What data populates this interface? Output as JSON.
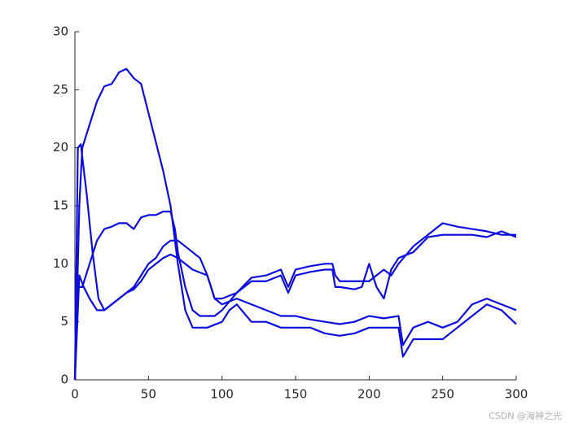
{
  "chart_data": {
    "type": "line",
    "xlim": [
      0,
      300
    ],
    "xticks": [
      0,
      50,
      100,
      150,
      200,
      250,
      300
    ],
    "ylim": [
      0,
      30
    ],
    "yticks": [
      0,
      5,
      10,
      15,
      20,
      25,
      30
    ],
    "grid": false,
    "series": [
      {
        "color": "#0d0de0",
        "x": [
          0,
          3,
          5,
          10,
          15,
          20,
          25,
          30,
          35,
          40,
          45,
          50,
          55,
          60,
          65,
          70,
          75,
          80,
          90,
          100,
          105,
          110,
          120,
          130,
          140,
          150,
          160,
          170,
          180,
          190,
          200,
          210,
          220,
          223,
          230,
          240,
          250,
          260,
          270,
          280,
          290,
          300
        ],
        "values": [
          0,
          15,
          20,
          22,
          24,
          25.3,
          25.5,
          26.5,
          26.8,
          26,
          25.5,
          23,
          20.5,
          18,
          15,
          10,
          6,
          4.5,
          4.5,
          5,
          6,
          6.5,
          5,
          5,
          4.5,
          4.5,
          4.5,
          4,
          3.8,
          4,
          4.5,
          4.5,
          4.5,
          2,
          3.5,
          3.5,
          3.5,
          4.5,
          5.5,
          6.5,
          6,
          4.8
        ]
      },
      {
        "color": "#0d0de0",
        "x": [
          0,
          2,
          4,
          8,
          12,
          16,
          20,
          25,
          30,
          35,
          40,
          45,
          50,
          55,
          60,
          65,
          70,
          75,
          80,
          90,
          95,
          100,
          110,
          120,
          130,
          140,
          150,
          160,
          170,
          180,
          190,
          200,
          210,
          220,
          223,
          230,
          240,
          250,
          260,
          270,
          280,
          290,
          300
        ],
        "values": [
          0,
          20,
          20.3,
          16,
          11,
          7,
          6,
          6.5,
          7,
          7.5,
          7.8,
          8.5,
          9.5,
          10,
          10.5,
          10.8,
          10.5,
          10,
          9.5,
          9,
          7,
          6.5,
          7,
          6.5,
          6,
          5.5,
          5.5,
          5.2,
          5,
          4.8,
          5,
          5.5,
          5.3,
          5.5,
          3,
          4.5,
          5,
          4.5,
          5,
          6.5,
          7,
          6.5,
          6
        ]
      },
      {
        "color": "#0d0de0",
        "x": [
          0,
          2,
          5,
          10,
          15,
          20,
          25,
          30,
          35,
          40,
          45,
          50,
          55,
          60,
          65,
          68,
          70,
          75,
          80,
          85,
          90,
          95,
          100,
          110,
          120,
          130,
          140,
          145,
          150,
          160,
          170,
          175,
          177,
          180,
          190,
          200,
          205,
          210,
          215,
          220,
          230,
          240,
          250,
          260,
          270,
          280,
          290,
          300
        ],
        "values": [
          0,
          8,
          8,
          10,
          12,
          13,
          13.2,
          13.5,
          13.5,
          13,
          14,
          14.2,
          14.2,
          14.5,
          14.5,
          13,
          11,
          8,
          6,
          5.5,
          5.5,
          5.5,
          6,
          7.5,
          8.8,
          9,
          9.5,
          8,
          9.5,
          9.8,
          10,
          10,
          9,
          8.5,
          8.5,
          8.5,
          9,
          9.5,
          9,
          10,
          11.5,
          12.5,
          13.5,
          13.2,
          13,
          12.8,
          12.5,
          12.5
        ]
      },
      {
        "color": "#0d0de0",
        "x": [
          0,
          3,
          6,
          10,
          15,
          20,
          25,
          30,
          35,
          40,
          45,
          50,
          55,
          60,
          65,
          70,
          75,
          80,
          85,
          90,
          95,
          100,
          110,
          120,
          130,
          140,
          145,
          150,
          160,
          170,
          175,
          177,
          180,
          190,
          195,
          200,
          205,
          210,
          215,
          220,
          230,
          240,
          250,
          260,
          270,
          280,
          290,
          300
        ],
        "values": [
          0,
          9,
          8,
          7,
          6,
          6,
          6.5,
          7,
          7.5,
          8,
          9,
          10,
          10.5,
          11.5,
          12,
          12,
          11.5,
          11,
          10.5,
          9,
          7,
          7,
          7.5,
          8.5,
          8.5,
          9,
          7.5,
          9,
          9.3,
          9.5,
          9.5,
          8,
          8,
          7.8,
          8,
          10,
          8,
          7,
          9.5,
          10.5,
          11,
          12.3,
          12.5,
          12.5,
          12.5,
          12.3,
          12.8,
          12.3
        ]
      }
    ],
    "watermark": "CSDN @海神之光"
  }
}
